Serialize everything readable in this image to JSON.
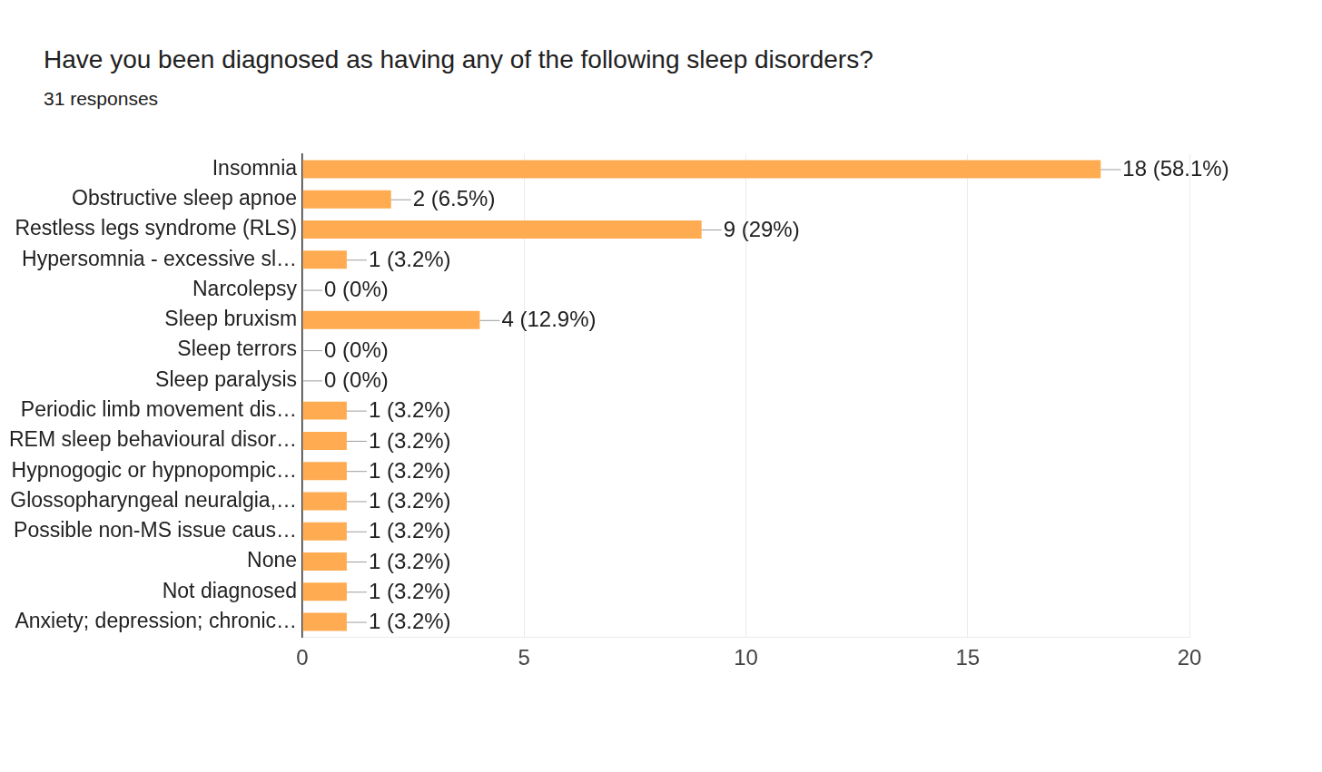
{
  "chart_data": {
    "type": "bar",
    "title": "Have you been diagnosed as having any of the following sleep disorders?",
    "subtitle": "31 responses",
    "categories": [
      "Insomnia",
      "Obstructive sleep apnoe",
      "Restless legs syndrome (RLS)",
      "Hypersomnia - excessive sl…",
      "Narcolepsy",
      "Sleep bruxism",
      "Sleep terrors",
      "Sleep paralysis",
      "Periodic limb movement dis…",
      "REM sleep behavioural disor…",
      "Hypnogogic or hypnopompic…",
      "Glossopharyngeal neuralgia,…",
      "Possible non-MS issue caus…",
      "None",
      "Not diagnosed",
      "Anxiety; depression; chronic…"
    ],
    "values": [
      18,
      2,
      9,
      1,
      0,
      4,
      0,
      0,
      1,
      1,
      1,
      1,
      1,
      1,
      1,
      1
    ],
    "value_labels": [
      "18 (58.1%)",
      "2 (6.5%)",
      "9 (29%)",
      "1 (3.2%)",
      "0 (0%)",
      "4 (12.9%)",
      "0 (0%)",
      "0 (0%)",
      "1 (3.2%)",
      "1 (3.2%)",
      "1 (3.2%)",
      "1 (3.2%)",
      "1 (3.2%)",
      "1 (3.2%)",
      "1 (3.2%)",
      "1 (3.2%)"
    ],
    "color": "#ffab51",
    "xlim": [
      0,
      20
    ],
    "xticks": [
      0,
      5,
      10,
      15,
      20
    ],
    "grid": true,
    "orientation": "horizontal",
    "data_labels": true
  }
}
